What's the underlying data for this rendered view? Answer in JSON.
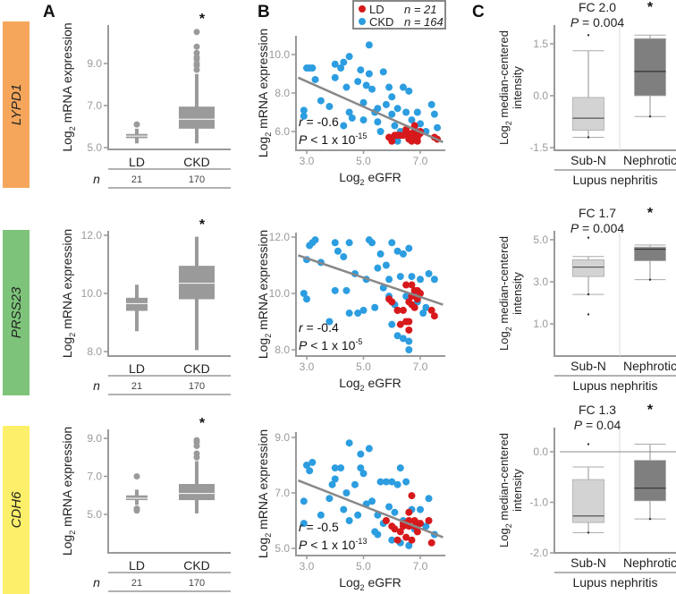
{
  "panel_letters": [
    "A",
    "B",
    "C"
  ],
  "colors": {
    "LD": "#d7191c",
    "CKD": "#2c9de0",
    "box_A": "#9a9a9a",
    "box_subN": "#d3d3d3",
    "box_neph": "#7f7f7f",
    "genes": [
      "#f5a65b",
      "#7dc47a",
      "#fcf06a"
    ]
  },
  "legend": {
    "LD_label": "LD",
    "LD_n": "n = 21",
    "CKD_label": "CKD",
    "CKD_n": "n = 164"
  },
  "labels": {
    "log": "Log",
    "sub": "2",
    "mrna": " mRNA expression",
    "egfr": " eGFR",
    "median_centered": " median-centered",
    "intensity": "intensity",
    "n": "n",
    "lupus": "Lupus nephritis"
  },
  "chart_data": [
    {
      "gene": "LYPD1",
      "A": {
        "type": "box",
        "ylim": [
          5.0,
          10.8
        ],
        "yticks": [
          "5.0",
          "7.0",
          "9.0"
        ],
        "categories": [
          "LD",
          "CKD"
        ],
        "n": [
          "21",
          "170"
        ],
        "star": "*",
        "boxes": [
          {
            "min": 5.2,
            "q1": 5.45,
            "median": 5.55,
            "q3": 5.65,
            "max": 5.9,
            "outliers": [
              6.1
            ]
          },
          {
            "min": 5.2,
            "q1": 5.9,
            "median": 6.35,
            "q3": 6.95,
            "max": 8.5,
            "outliers": [
              8.7,
              8.9,
              9.0,
              9.2,
              9.3,
              9.5,
              9.8,
              10.5
            ]
          }
        ]
      },
      "B": {
        "type": "scatter",
        "xticks": [
          "3.0",
          "5.0",
          "7.0"
        ],
        "yticks": [
          "6.0",
          "8.0",
          "10.0"
        ],
        "r": "-0.6",
        "p": " < 1 x 10",
        "p_exp": "-15",
        "fit": [
          [
            2.7,
            8.8
          ],
          [
            7.8,
            5.45
          ]
        ],
        "CKD": [
          [
            2.9,
            7.1
          ],
          [
            2.9,
            6.8
          ],
          [
            3.0,
            9.3
          ],
          [
            3.1,
            9.3
          ],
          [
            3.2,
            9.3
          ],
          [
            3.3,
            8.7
          ],
          [
            3.5,
            7.6
          ],
          [
            3.8,
            7.3
          ],
          [
            4.0,
            9.5
          ],
          [
            4.0,
            8.8
          ],
          [
            4.2,
            9.3
          ],
          [
            4.3,
            9.6
          ],
          [
            4.4,
            8.3
          ],
          [
            4.5,
            9.9
          ],
          [
            4.5,
            7.0
          ],
          [
            4.6,
            6.7
          ],
          [
            4.8,
            8.6
          ],
          [
            4.9,
            9.2
          ],
          [
            5.0,
            7.5
          ],
          [
            5.1,
            8.4
          ],
          [
            5.2,
            10.5
          ],
          [
            5.2,
            9.0
          ],
          [
            5.3,
            8.2
          ],
          [
            5.4,
            7.0
          ],
          [
            5.5,
            6.5
          ],
          [
            5.6,
            6.0
          ],
          [
            5.7,
            9.1
          ],
          [
            5.8,
            7.4
          ],
          [
            5.9,
            8.3
          ],
          [
            6.0,
            7.8
          ],
          [
            6.0,
            6.9
          ],
          [
            6.1,
            6.3
          ],
          [
            6.2,
            7.2
          ],
          [
            6.3,
            6.0
          ],
          [
            6.4,
            8.3
          ],
          [
            6.5,
            7.0
          ],
          [
            6.6,
            8.1
          ],
          [
            6.7,
            6.6
          ],
          [
            6.8,
            6.2
          ],
          [
            6.9,
            7.0
          ],
          [
            7.0,
            6.4
          ],
          [
            7.2,
            6.0
          ],
          [
            7.4,
            7.4
          ],
          [
            7.5,
            6.9
          ],
          [
            7.6,
            6.2
          ],
          [
            4.3,
            6.3
          ],
          [
            5.0,
            6.6
          ],
          [
            5.5,
            7.2
          ],
          [
            6.2,
            5.5
          ],
          [
            6.6,
            5.8
          ]
        ],
        "LD": [
          [
            5.9,
            5.7
          ],
          [
            6.0,
            5.5
          ],
          [
            6.2,
            5.8
          ],
          [
            6.3,
            5.8
          ],
          [
            6.5,
            5.9
          ],
          [
            6.5,
            6.1
          ],
          [
            6.6,
            5.6
          ],
          [
            6.7,
            5.5
          ],
          [
            6.7,
            5.9
          ],
          [
            6.8,
            6.3
          ],
          [
            6.8,
            5.8
          ],
          [
            6.9,
            5.7
          ],
          [
            7.0,
            5.9
          ],
          [
            7.0,
            6.0
          ],
          [
            7.5,
            5.7
          ],
          [
            7.6,
            5.6
          ],
          [
            6.4,
            5.8
          ],
          [
            6.6,
            5.7
          ],
          [
            6.9,
            5.5
          ],
          [
            6.8,
            6.0
          ],
          [
            6.1,
            5.8
          ]
        ]
      },
      "C": {
        "type": "box",
        "yticks": [
          "-1.5",
          "0.0",
          "1.5"
        ],
        "categories": [
          "Sub-N",
          "Nephrotic"
        ],
        "fc": "FC 2.0",
        "p": " = 0.004",
        "star": "*",
        "zero_line": false,
        "boxes": [
          {
            "min": -1.2,
            "q1": -1.0,
            "median": -0.65,
            "q3": -0.05,
            "max": 1.3,
            "outliers": [
              1.75
            ]
          },
          {
            "min": -0.6,
            "q1": 0.0,
            "median": 0.7,
            "q3": 1.65,
            "max": 1.75,
            "outliers": []
          }
        ]
      }
    },
    {
      "gene": "PRSS23",
      "A": {
        "type": "box",
        "ylim": [
          8.0,
          12.0
        ],
        "yticks": [
          "8.0",
          "10.0",
          "12.0"
        ],
        "categories": [
          "LD",
          "CKD"
        ],
        "n": [
          "21",
          "170"
        ],
        "star": "*",
        "boxes": [
          {
            "min": 8.7,
            "q1": 9.4,
            "median": 9.65,
            "q3": 9.85,
            "max": 10.3,
            "outliers": []
          },
          {
            "min": 8.05,
            "q1": 9.8,
            "median": 10.35,
            "q3": 10.95,
            "max": 11.95,
            "outliers": []
          }
        ]
      },
      "B": {
        "type": "scatter",
        "xticks": [
          "3.0",
          "5.0",
          "7.0"
        ],
        "yticks": [
          "8.0",
          "10.0",
          "12.0"
        ],
        "r": "-0.4",
        "p": " < 1 x 10",
        "p_exp": "-5",
        "fit": [
          [
            2.7,
            11.35
          ],
          [
            7.8,
            9.6
          ]
        ],
        "CKD": [
          [
            2.9,
            10.0
          ],
          [
            3.0,
            11.2
          ],
          [
            3.0,
            9.8
          ],
          [
            3.1,
            11.7
          ],
          [
            3.2,
            11.8
          ],
          [
            3.3,
            11.9
          ],
          [
            3.5,
            11.1
          ],
          [
            3.8,
            9.0
          ],
          [
            4.0,
            10.1
          ],
          [
            4.0,
            11.8
          ],
          [
            4.1,
            11.5
          ],
          [
            4.3,
            11.3
          ],
          [
            4.4,
            10.1
          ],
          [
            4.5,
            11.8
          ],
          [
            4.5,
            9.3
          ],
          [
            4.7,
            10.7
          ],
          [
            4.8,
            9.3
          ],
          [
            5.0,
            9.4
          ],
          [
            5.1,
            10.5
          ],
          [
            5.2,
            11.9
          ],
          [
            5.3,
            11.8
          ],
          [
            5.4,
            9.5
          ],
          [
            5.5,
            10.9
          ],
          [
            5.6,
            11.4
          ],
          [
            5.7,
            10.2
          ],
          [
            5.8,
            11.0
          ],
          [
            5.9,
            10.5
          ],
          [
            6.0,
            11.8
          ],
          [
            6.0,
            8.9
          ],
          [
            6.1,
            9.6
          ],
          [
            6.2,
            11.5
          ],
          [
            6.2,
            8.5
          ],
          [
            6.3,
            10.6
          ],
          [
            6.4,
            11.4
          ],
          [
            6.4,
            8.4
          ],
          [
            6.5,
            9.9
          ],
          [
            6.6,
            11.6
          ],
          [
            6.6,
            8.3
          ],
          [
            6.7,
            10.6
          ],
          [
            6.8,
            10.0
          ],
          [
            7.0,
            10.5
          ],
          [
            7.1,
            9.3
          ],
          [
            7.2,
            9.5
          ],
          [
            7.3,
            10.7
          ],
          [
            7.5,
            10.5
          ],
          [
            6.6,
            8.0
          ],
          [
            5.9,
            9.9
          ],
          [
            6.9,
            9.7
          ]
        ],
        "LD": [
          [
            5.9,
            9.8
          ],
          [
            6.0,
            9.7
          ],
          [
            6.2,
            9.4
          ],
          [
            6.3,
            8.9
          ],
          [
            6.4,
            9.4
          ],
          [
            6.5,
            10.3
          ],
          [
            6.5,
            9.0
          ],
          [
            6.6,
            8.7
          ],
          [
            6.7,
            9.6
          ],
          [
            6.7,
            10.3
          ],
          [
            6.8,
            10.1
          ],
          [
            6.8,
            9.5
          ],
          [
            6.9,
            9.8
          ],
          [
            7.0,
            10.0
          ],
          [
            7.4,
            9.4
          ],
          [
            7.5,
            9.2
          ],
          [
            6.6,
            9.7
          ],
          [
            6.9,
            10.1
          ],
          [
            6.7,
            9.9
          ],
          [
            6.6,
            9.0
          ],
          [
            6.2,
            9.4
          ]
        ]
      },
      "C": {
        "type": "box",
        "yticks": [
          "1.0",
          "3.0",
          "5.0"
        ],
        "categories": [
          "Sub-N",
          "Nephrotic"
        ],
        "fc": "FC 1.7",
        "p": " = 0.004",
        "star": "*",
        "zero_line": false,
        "boxes": [
          {
            "min": 2.4,
            "q1": 3.25,
            "median": 3.7,
            "q3": 4.05,
            "max": 4.2,
            "outliers": [
              1.45,
              5.1
            ]
          },
          {
            "min": 3.1,
            "q1": 4.0,
            "median": 4.55,
            "q3": 4.65,
            "max": 4.75,
            "outliers": []
          }
        ]
      }
    },
    {
      "gene": "CDH6",
      "A": {
        "type": "box",
        "ylim": [
          5.0,
          9.0
        ],
        "yticks": [
          "5.0",
          "7.0",
          "9.0"
        ],
        "categories": [
          "LD",
          "CKD"
        ],
        "n": [
          "21",
          "170"
        ],
        "star": "*",
        "boxes": [
          {
            "min": 5.5,
            "q1": 5.75,
            "median": 5.85,
            "q3": 6.0,
            "max": 6.3,
            "outliers": [
              5.2,
              5.3,
              7.0
            ]
          },
          {
            "min": 5.05,
            "q1": 5.75,
            "median": 6.1,
            "q3": 6.6,
            "max": 7.8,
            "outliers": [
              8.0,
              8.2,
              8.6,
              8.8,
              8.9
            ]
          }
        ]
      },
      "B": {
        "type": "scatter",
        "xticks": [
          "3.0",
          "5.0",
          "7.0"
        ],
        "yticks": [
          "5.0",
          "7.0",
          "9.0"
        ],
        "r": "-0.5",
        "p": " < 1 x 10",
        "p_exp": "-13",
        "fit": [
          [
            2.7,
            7.45
          ],
          [
            7.8,
            5.4
          ]
        ],
        "CKD": [
          [
            2.9,
            6.7
          ],
          [
            2.9,
            5.9
          ],
          [
            3.0,
            8.0
          ],
          [
            3.1,
            7.8
          ],
          [
            3.2,
            8.1
          ],
          [
            3.5,
            6.2
          ],
          [
            3.8,
            6.8
          ],
          [
            3.9,
            7.3
          ],
          [
            4.0,
            7.9
          ],
          [
            4.0,
            7.5
          ],
          [
            4.2,
            7.9
          ],
          [
            4.3,
            6.4
          ],
          [
            4.4,
            7.0
          ],
          [
            4.5,
            8.8
          ],
          [
            4.5,
            6.0
          ],
          [
            4.7,
            7.3
          ],
          [
            4.8,
            6.2
          ],
          [
            4.9,
            8.4
          ],
          [
            4.9,
            7.9
          ],
          [
            5.0,
            7.7
          ],
          [
            5.1,
            6.6
          ],
          [
            5.2,
            8.6
          ],
          [
            5.3,
            6.7
          ],
          [
            5.4,
            5.6
          ],
          [
            5.5,
            6.2
          ],
          [
            5.6,
            7.4
          ],
          [
            5.7,
            5.9
          ],
          [
            5.8,
            7.4
          ],
          [
            5.9,
            6.5
          ],
          [
            6.0,
            7.4
          ],
          [
            6.1,
            6.3
          ],
          [
            6.2,
            7.3
          ],
          [
            6.3,
            7.9
          ],
          [
            6.4,
            6.0
          ],
          [
            6.5,
            7.4
          ],
          [
            6.6,
            5.1
          ],
          [
            6.7,
            6.4
          ],
          [
            6.8,
            5.7
          ],
          [
            7.0,
            6.4
          ],
          [
            7.2,
            5.8
          ],
          [
            7.3,
            6.8
          ],
          [
            7.5,
            5.5
          ],
          [
            5.5,
            5.5
          ],
          [
            6.0,
            5.3
          ],
          [
            6.3,
            5.2
          ]
        ],
        "LD": [
          [
            5.8,
            6.0
          ],
          [
            6.0,
            5.8
          ],
          [
            6.2,
            5.3
          ],
          [
            6.3,
            5.6
          ],
          [
            6.4,
            5.8
          ],
          [
            6.5,
            5.9
          ],
          [
            6.5,
            5.4
          ],
          [
            6.6,
            6.3
          ],
          [
            6.6,
            5.8
          ],
          [
            6.7,
            6.9
          ],
          [
            6.7,
            5.3
          ],
          [
            6.8,
            6.0
          ],
          [
            6.8,
            5.8
          ],
          [
            6.9,
            5.9
          ],
          [
            7.0,
            5.9
          ],
          [
            7.3,
            6.0
          ],
          [
            7.4,
            5.2
          ],
          [
            6.9,
            5.6
          ],
          [
            6.6,
            6.0
          ],
          [
            6.4,
            5.9
          ],
          [
            6.1,
            5.7
          ]
        ]
      },
      "C": {
        "type": "box",
        "yticks": [
          "-2.0",
          "-1.0",
          "0.0"
        ],
        "categories": [
          "Sub-N",
          "Nephrotic"
        ],
        "fc": "FC 1.3",
        "p": " = 0.04",
        "star": "*",
        "zero_line": true,
        "boxes": [
          {
            "min": -1.6,
            "q1": -1.4,
            "median": -1.27,
            "q3": -0.55,
            "max": -0.3,
            "outliers": [
              0.15
            ]
          },
          {
            "min": -1.33,
            "q1": -0.97,
            "median": -0.72,
            "q3": -0.17,
            "max": 0.15,
            "outliers": []
          }
        ]
      }
    }
  ]
}
